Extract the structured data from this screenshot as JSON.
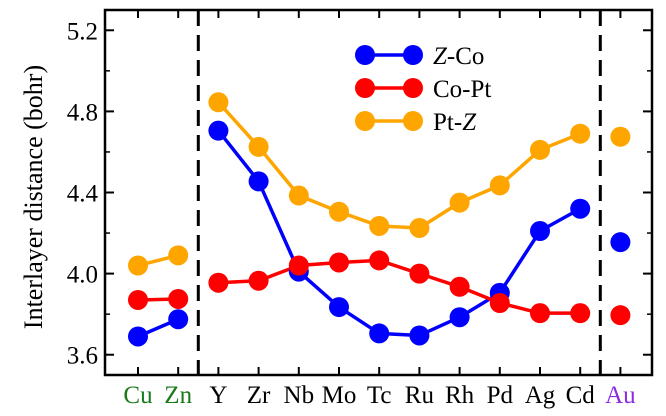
{
  "chart_data": {
    "type": "line",
    "title": "",
    "xlabel": "",
    "ylabel": "Interlayer distance (bohr)",
    "ylim": [
      3.5,
      5.3
    ],
    "yticks": [
      "3.6",
      "4.0",
      "4.4",
      "4.8",
      "5.2"
    ],
    "categories": [
      "Cu",
      "Zn",
      "Y",
      "Zr",
      "Nb",
      "Mo",
      "Tc",
      "Ru",
      "Rh",
      "Pd",
      "Ag",
      "Cd",
      "Au"
    ],
    "category_colors": [
      "#1a7a1a",
      "#1a7a1a",
      "#000000",
      "#000000",
      "#000000",
      "#000000",
      "#000000",
      "#000000",
      "#000000",
      "#000000",
      "#000000",
      "#000000",
      "#8a2be2"
    ],
    "groups": [
      [
        0,
        1
      ],
      [
        2,
        11
      ],
      [
        12,
        12
      ]
    ],
    "separators_after": [
      "Zn",
      "Cd"
    ],
    "legend_position": "top-center",
    "series": [
      {
        "name": "Z-Co",
        "legend": {
          "italic": "Z",
          "rest": "-Co"
        },
        "color": "#0000ff",
        "values": [
          3.69,
          3.775,
          4.705,
          4.455,
          4.01,
          3.835,
          3.705,
          3.695,
          3.785,
          3.905,
          4.21,
          4.32,
          4.155
        ]
      },
      {
        "name": "Co-Pt",
        "legend": {
          "italic": "",
          "rest": "Co-Pt"
        },
        "color": "#ff0000",
        "values": [
          3.87,
          3.875,
          3.955,
          3.965,
          4.04,
          4.055,
          4.065,
          4.0,
          3.935,
          3.855,
          3.805,
          3.805,
          3.795
        ]
      },
      {
        "name": "Pt-Z",
        "legend": {
          "italic": "Z",
          "rest": "Pt-",
          "italic_last": true
        },
        "color": "#ffa500",
        "values": [
          4.04,
          4.09,
          4.845,
          4.625,
          4.385,
          4.305,
          4.235,
          4.225,
          4.35,
          4.435,
          4.61,
          4.69,
          4.675
        ]
      }
    ]
  }
}
